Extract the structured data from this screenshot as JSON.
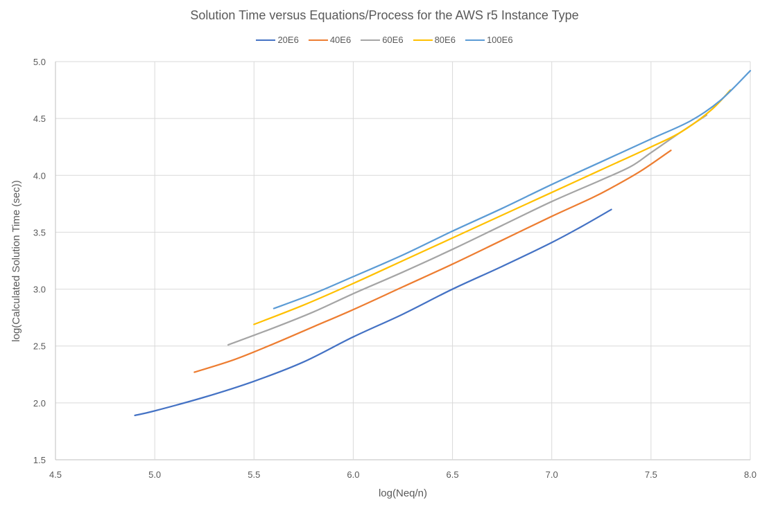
{
  "chart_data": {
    "type": "line",
    "title": "Solution Time versus Equations/Process for the AWS r5 Instance Type",
    "xlabel": "log(Neq/n)",
    "ylabel": "log(Calculated Solution Time (sec))",
    "xlim": [
      4.5,
      8.0
    ],
    "ylim": [
      1.5,
      5.0
    ],
    "x_ticks": [
      "4.5",
      "5.0",
      "5.5",
      "6.0",
      "6.5",
      "7.0",
      "7.5",
      "8.0"
    ],
    "y_ticks": [
      "1.5",
      "2.0",
      "2.5",
      "3.0",
      "3.5",
      "4.0",
      "4.5",
      "5.0"
    ],
    "grid": true,
    "legend_position": "top",
    "series": [
      {
        "name": "20E6",
        "color": "#4472C4",
        "points": [
          [
            4.9,
            1.89
          ],
          [
            5.0,
            1.93
          ],
          [
            5.25,
            2.05
          ],
          [
            5.5,
            2.19
          ],
          [
            5.75,
            2.36
          ],
          [
            6.0,
            2.58
          ],
          [
            6.25,
            2.78
          ],
          [
            6.5,
            3.0
          ],
          [
            6.75,
            3.2
          ],
          [
            7.0,
            3.41
          ],
          [
            7.15,
            3.55
          ],
          [
            7.3,
            3.7
          ]
        ]
      },
      {
        "name": "40E6",
        "color": "#ED7D31",
        "points": [
          [
            5.2,
            2.27
          ],
          [
            5.4,
            2.38
          ],
          [
            5.6,
            2.52
          ],
          [
            5.8,
            2.67
          ],
          [
            6.0,
            2.82
          ],
          [
            6.25,
            3.02
          ],
          [
            6.5,
            3.22
          ],
          [
            6.75,
            3.43
          ],
          [
            7.0,
            3.64
          ],
          [
            7.2,
            3.8
          ],
          [
            7.3,
            3.89
          ],
          [
            7.45,
            4.04
          ],
          [
            7.6,
            4.22
          ]
        ]
      },
      {
        "name": "60E6",
        "color": "#A5A5A5",
        "points": [
          [
            5.37,
            2.51
          ],
          [
            5.6,
            2.66
          ],
          [
            5.8,
            2.8
          ],
          [
            6.0,
            2.96
          ],
          [
            6.25,
            3.15
          ],
          [
            6.5,
            3.35
          ],
          [
            6.75,
            3.56
          ],
          [
            7.0,
            3.77
          ],
          [
            7.25,
            3.96
          ],
          [
            7.4,
            4.08
          ],
          [
            7.5,
            4.2
          ],
          [
            7.65,
            4.38
          ],
          [
            7.78,
            4.53
          ]
        ]
      },
      {
        "name": "80E6",
        "color": "#FFC000",
        "points": [
          [
            5.5,
            2.69
          ],
          [
            5.75,
            2.86
          ],
          [
            6.0,
            3.05
          ],
          [
            6.25,
            3.25
          ],
          [
            6.5,
            3.45
          ],
          [
            6.75,
            3.65
          ],
          [
            7.0,
            3.85
          ],
          [
            7.25,
            4.05
          ],
          [
            7.5,
            4.25
          ],
          [
            7.65,
            4.38
          ],
          [
            7.8,
            4.57
          ],
          [
            7.9,
            4.75
          ]
        ]
      },
      {
        "name": "100E6",
        "color": "#5B9BD5",
        "points": [
          [
            5.6,
            2.83
          ],
          [
            5.8,
            2.96
          ],
          [
            6.0,
            3.11
          ],
          [
            6.25,
            3.3
          ],
          [
            6.5,
            3.51
          ],
          [
            6.75,
            3.71
          ],
          [
            7.0,
            3.92
          ],
          [
            7.25,
            4.12
          ],
          [
            7.5,
            4.32
          ],
          [
            7.7,
            4.48
          ],
          [
            7.85,
            4.66
          ],
          [
            8.0,
            4.92
          ]
        ]
      }
    ]
  }
}
